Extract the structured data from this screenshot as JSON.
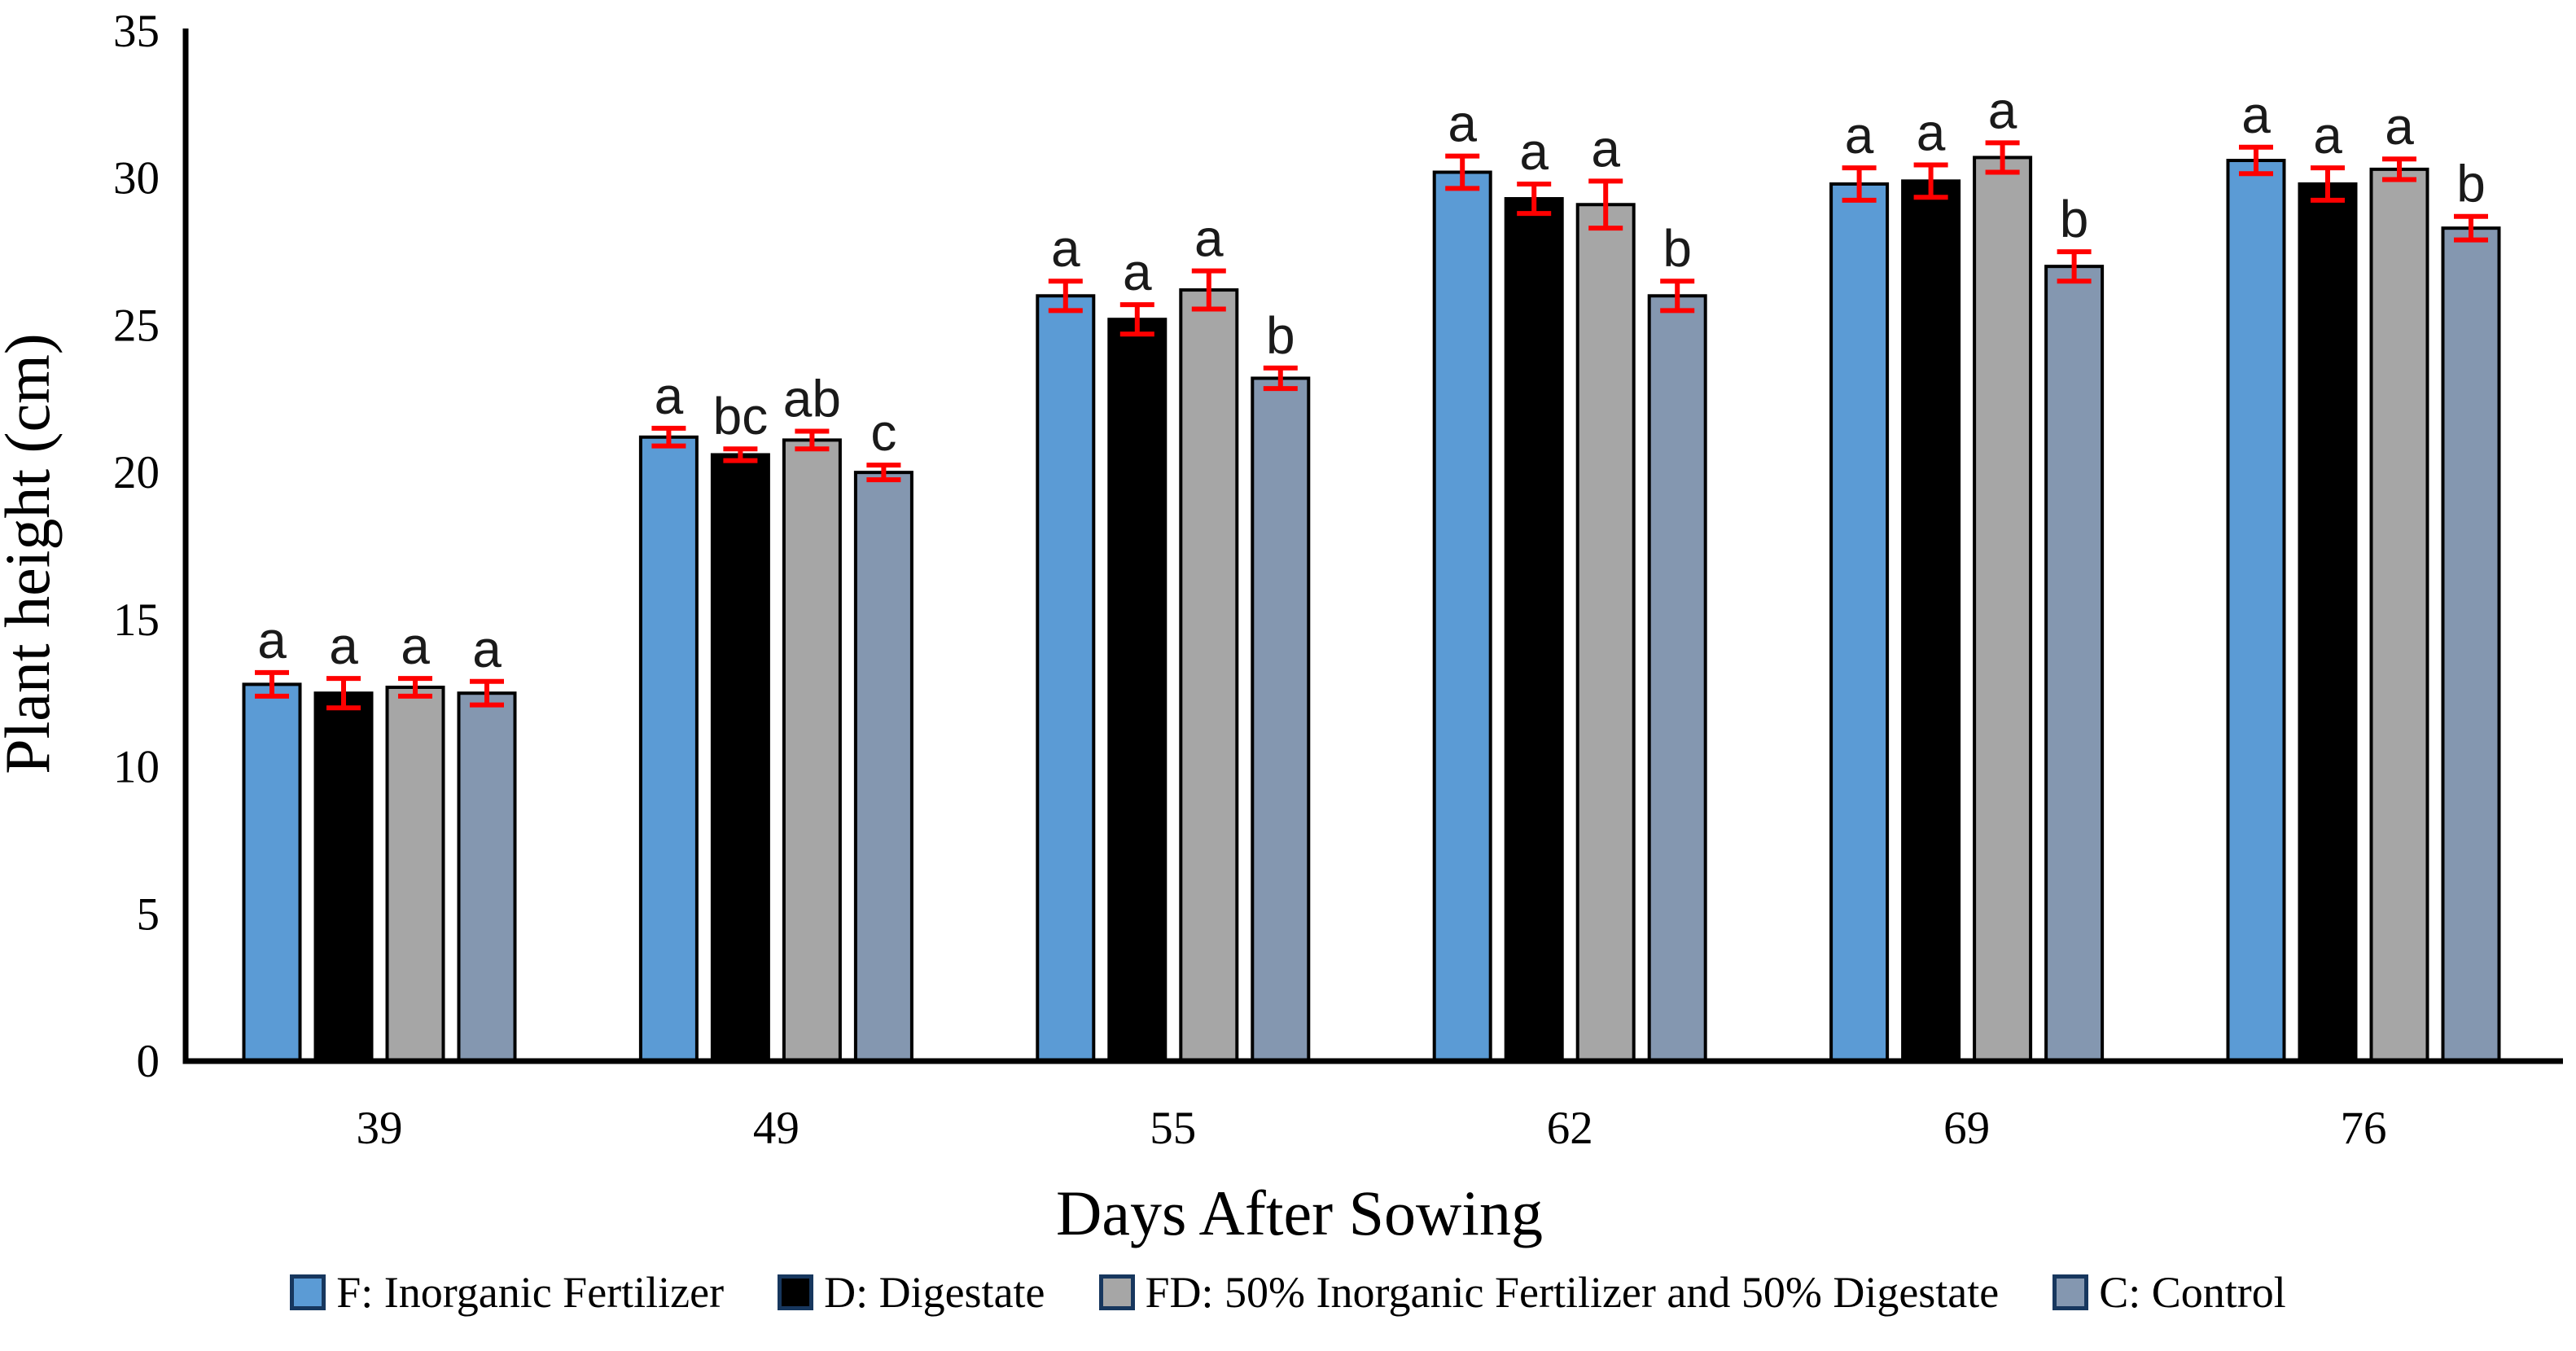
{
  "chart_data": {
    "type": "bar",
    "title": "",
    "xlabel": "Days After Sowing",
    "ylabel": "Plant height (cm)",
    "ylim": [
      0,
      35
    ],
    "yticks": [
      0,
      5,
      10,
      15,
      20,
      25,
      30,
      35
    ],
    "categories": [
      "39",
      "49",
      "55",
      "62",
      "69",
      "76"
    ],
    "grid": "off",
    "legend_position": "bottom",
    "error_bar_color": "#FF0000",
    "bar_border_color": "#000000",
    "series": [
      {
        "name": "F: Inorganic Fertilizer",
        "color": "#5B9BD5",
        "values": [
          12.8,
          21.2,
          26.0,
          30.2,
          29.8,
          30.6
        ],
        "errors": [
          0.4,
          0.3,
          0.5,
          0.55,
          0.55,
          0.45
        ],
        "letters": [
          "a",
          "a",
          "a",
          "a",
          "a",
          "a"
        ]
      },
      {
        "name": "D: Digestate",
        "color": "#000000",
        "values": [
          12.5,
          20.6,
          25.2,
          29.3,
          29.9,
          29.8
        ],
        "errors": [
          0.5,
          0.2,
          0.5,
          0.5,
          0.55,
          0.55
        ],
        "letters": [
          "a",
          "bc",
          "a",
          "a",
          "a",
          "a"
        ]
      },
      {
        "name": "FD: 50% Inorganic Fertilizer and 50% Digestate",
        "color": "#A6A6A6",
        "values": [
          12.7,
          21.1,
          26.2,
          29.1,
          30.7,
          30.3
        ],
        "errors": [
          0.3,
          0.3,
          0.65,
          0.8,
          0.5,
          0.35
        ],
        "letters": [
          "a",
          "ab",
          "a",
          "a",
          "a",
          "a"
        ]
      },
      {
        "name": "C: Control",
        "color": "#8497B0",
        "values": [
          12.5,
          20.0,
          23.2,
          26.0,
          27.0,
          28.3
        ],
        "errors": [
          0.4,
          0.25,
          0.35,
          0.5,
          0.5,
          0.4
        ],
        "letters": [
          "a",
          "c",
          "b",
          "b",
          "b",
          "b"
        ]
      }
    ]
  }
}
